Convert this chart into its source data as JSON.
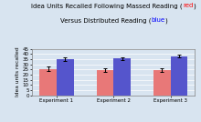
{
  "experiments": [
    "Experiment 1",
    "Experiment 2",
    "Experiment 3"
  ],
  "massed_values": [
    25.5,
    24.5,
    24.5
  ],
  "distributed_values": [
    35.0,
    35.5,
    38.0
  ],
  "massed_errors": [
    2.0,
    2.0,
    2.0
  ],
  "distributed_errors": [
    1.5,
    1.5,
    1.5
  ],
  "massed_color": "#e87878",
  "distributed_color": "#5555cc",
  "ylim": [
    0,
    45
  ],
  "yticks": [
    0,
    5,
    10,
    15,
    20,
    25,
    30,
    35,
    40,
    45
  ],
  "ylabel": "Idea units recalled",
  "bg_color": "#d8e4f0",
  "title_fontsize": 5.0,
  "label_fontsize": 4.2,
  "tick_fontsize": 4.0,
  "bar_width": 0.3
}
